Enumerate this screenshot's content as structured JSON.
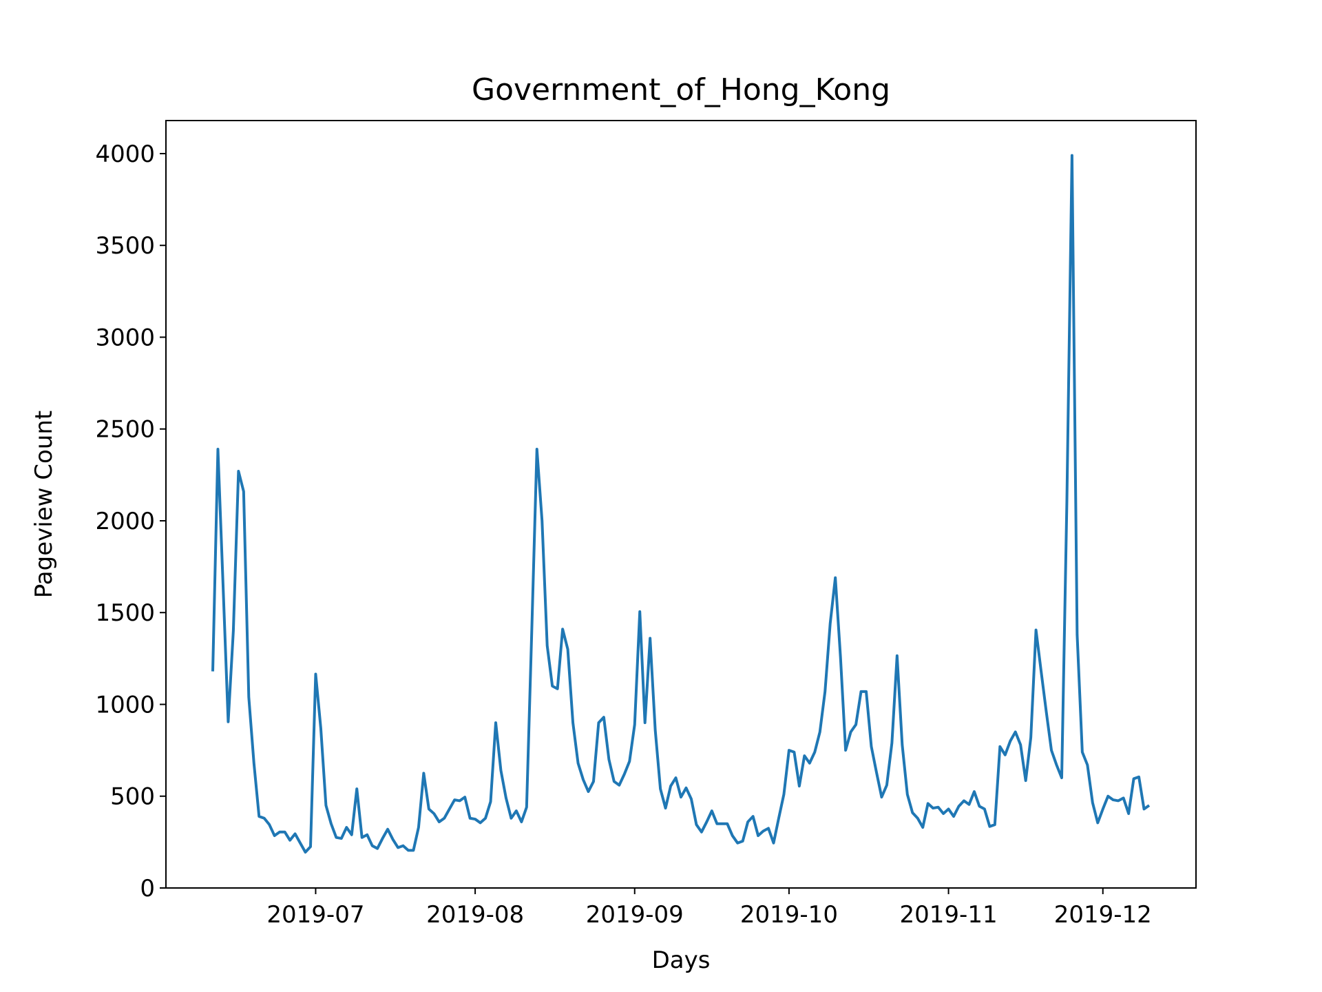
{
  "chart_data": {
    "type": "line",
    "title": "Government_of_Hong_Kong",
    "xlabel": "Days",
    "ylabel": "Pageview Count",
    "color": "#1f77b4",
    "categories": [
      null,
      null,
      null,
      null,
      null,
      null,
      null,
      null,
      null,
      null,
      null,
      null,
      null,
      null,
      null,
      null,
      null,
      null,
      null,
      null,
      "2019-07",
      null,
      null,
      null,
      null,
      null,
      null,
      null,
      null,
      null,
      null,
      null,
      null,
      null,
      null,
      null,
      null,
      null,
      null,
      null,
      null,
      null,
      null,
      null,
      null,
      null,
      null,
      null,
      null,
      null,
      null,
      "2019-08",
      null,
      null,
      null,
      null,
      null,
      null,
      null,
      null,
      null,
      null,
      null,
      null,
      null,
      null,
      null,
      null,
      null,
      null,
      null,
      null,
      null,
      null,
      null,
      null,
      null,
      null,
      null,
      null,
      null,
      null,
      "2019-09",
      null,
      null,
      null,
      null,
      null,
      null,
      null,
      null,
      null,
      null,
      null,
      null,
      null,
      null,
      null,
      null,
      null,
      null,
      null,
      null,
      null,
      null,
      null,
      null,
      null,
      null,
      null,
      null,
      null,
      "2019-10",
      null,
      null,
      null,
      null,
      null,
      null,
      null,
      null,
      null,
      null,
      null,
      null,
      null,
      null,
      null,
      null,
      null,
      null,
      null,
      null,
      null,
      null,
      null,
      null,
      null,
      null,
      null,
      null,
      null,
      null,
      "2019-11",
      null,
      null,
      null,
      null,
      null,
      null,
      null,
      null,
      null,
      null,
      null,
      null,
      null,
      null,
      null,
      null,
      null,
      null,
      null,
      null,
      null,
      null,
      null,
      null,
      null,
      null,
      null,
      null,
      null,
      "2019-12",
      null,
      null,
      null,
      null,
      null,
      null,
      null,
      null,
      null
    ],
    "values": [
      1180,
      2390,
      1650,
      905,
      1400,
      2270,
      2160,
      1040,
      680,
      390,
      380,
      345,
      285,
      305,
      305,
      260,
      295,
      245,
      195,
      225,
      1165,
      870,
      450,
      350,
      275,
      270,
      330,
      290,
      540,
      275,
      290,
      230,
      215,
      270,
      320,
      265,
      220,
      230,
      205,
      205,
      330,
      625,
      430,
      405,
      360,
      380,
      430,
      480,
      475,
      495,
      380,
      375,
      355,
      380,
      470,
      900,
      640,
      490,
      380,
      420,
      360,
      440,
      1400,
      2390,
      2000,
      1320,
      1100,
      1085,
      1410,
      1300,
      900,
      680,
      590,
      525,
      580,
      900,
      930,
      700,
      580,
      560,
      620,
      690,
      890,
      1505,
      900,
      1360,
      860,
      540,
      435,
      555,
      600,
      495,
      545,
      485,
      345,
      305,
      360,
      420,
      350,
      350,
      350,
      285,
      245,
      255,
      360,
      390,
      285,
      310,
      325,
      245,
      380,
      510,
      750,
      740,
      555,
      720,
      680,
      740,
      850,
      1070,
      1440,
      1690,
      1260,
      750,
      850,
      890,
      1070,
      1070,
      770,
      630,
      495,
      560,
      790,
      1265,
      780,
      510,
      410,
      380,
      330,
      460,
      435,
      440,
      405,
      430,
      390,
      445,
      475,
      455,
      525,
      445,
      430,
      335,
      345,
      770,
      725,
      800,
      850,
      780,
      585,
      820,
      1405,
      1180,
      960,
      750,
      670,
      600,
      2100,
      3990,
      1380,
      740,
      670,
      465,
      355,
      430,
      500,
      480,
      475,
      490,
      405,
      595,
      605,
      430,
      450
    ],
    "ylim": [
      0,
      4180
    ],
    "yticks": [
      0,
      500,
      1000,
      1500,
      2000,
      2500,
      3000,
      3500,
      4000
    ],
    "grid": false
  }
}
